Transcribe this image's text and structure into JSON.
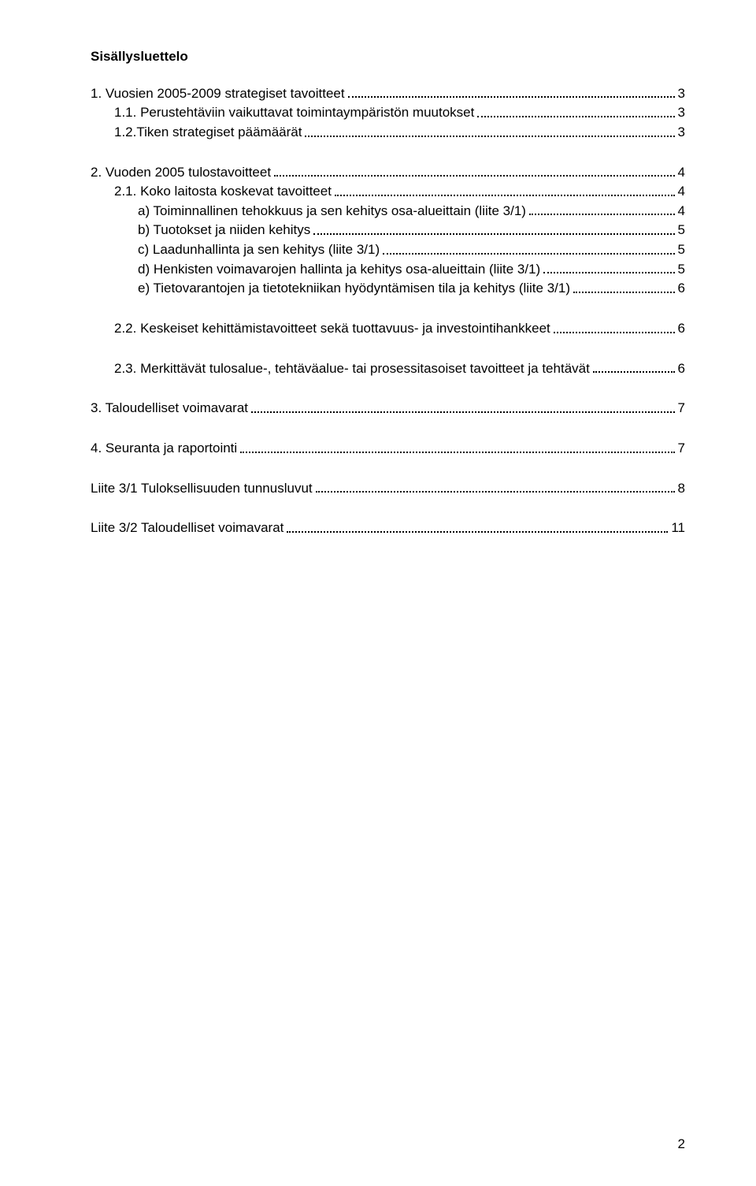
{
  "document": {
    "title": "Sisällysluettelo",
    "page_number": "2",
    "font_family": "Arial",
    "font_size_pt": 12,
    "text_color": "#000000",
    "background_color": "#ffffff",
    "toc": [
      {
        "label": "1. Vuosien 2005-2009 strategiset tavoitteet",
        "page": "3",
        "indent": 0,
        "gap_before": false
      },
      {
        "label": "1.1. Perustehtäviin vaikuttavat toimintaympäristön muutokset",
        "page": "3",
        "indent": 1,
        "gap_before": false
      },
      {
        "label": "1.2.Tiken strategiset päämäärät",
        "page": "3",
        "indent": 1,
        "gap_before": false
      },
      {
        "label": "2. Vuoden 2005 tulostavoitteet",
        "page": "4",
        "indent": 0,
        "gap_before": true
      },
      {
        "label": "2.1. Koko laitosta koskevat tavoitteet",
        "page": "4",
        "indent": 1,
        "gap_before": false
      },
      {
        "label": "a) Toiminnallinen tehokkuus ja sen kehitys osa-alueittain (liite 3/1)",
        "page": "4",
        "indent": 2,
        "gap_before": false
      },
      {
        "label": "b) Tuotokset ja niiden kehitys",
        "page": "5",
        "indent": 2,
        "gap_before": false
      },
      {
        "label": "c) Laadunhallinta ja sen kehitys (liite 3/1)",
        "page": "5",
        "indent": 2,
        "gap_before": false
      },
      {
        "label": "d) Henkisten voimavarojen hallinta ja kehitys osa-alueittain (liite 3/1)",
        "page": "5",
        "indent": 2,
        "gap_before": false
      },
      {
        "label": "e) Tietovarantojen ja tietotekniikan hyödyntämisen tila ja kehitys (liite 3/1)",
        "page": "6",
        "indent": 2,
        "gap_before": false
      },
      {
        "label": "2.2. Keskeiset kehittämistavoitteet sekä tuottavuus- ja investointihankkeet",
        "page": "6",
        "indent": 1,
        "gap_before": true
      },
      {
        "label": "2.3. Merkittävät tulosalue-, tehtäväalue- tai prosessitasoiset tavoitteet ja tehtävät",
        "page": "6",
        "indent": 1,
        "gap_before": true
      },
      {
        "label": "3. Taloudelliset voimavarat",
        "page": "7",
        "indent": 0,
        "gap_before": true
      },
      {
        "label": "4. Seuranta ja raportointi",
        "page": "7",
        "indent": 0,
        "gap_before": true
      },
      {
        "label": "Liite 3/1 Tuloksellisuuden tunnusluvut",
        "page": "8",
        "indent": 0,
        "gap_before": true
      },
      {
        "label": "Liite 3/2 Taloudelliset voimavarat",
        "page": "11",
        "indent": 0,
        "gap_before": true
      }
    ]
  }
}
